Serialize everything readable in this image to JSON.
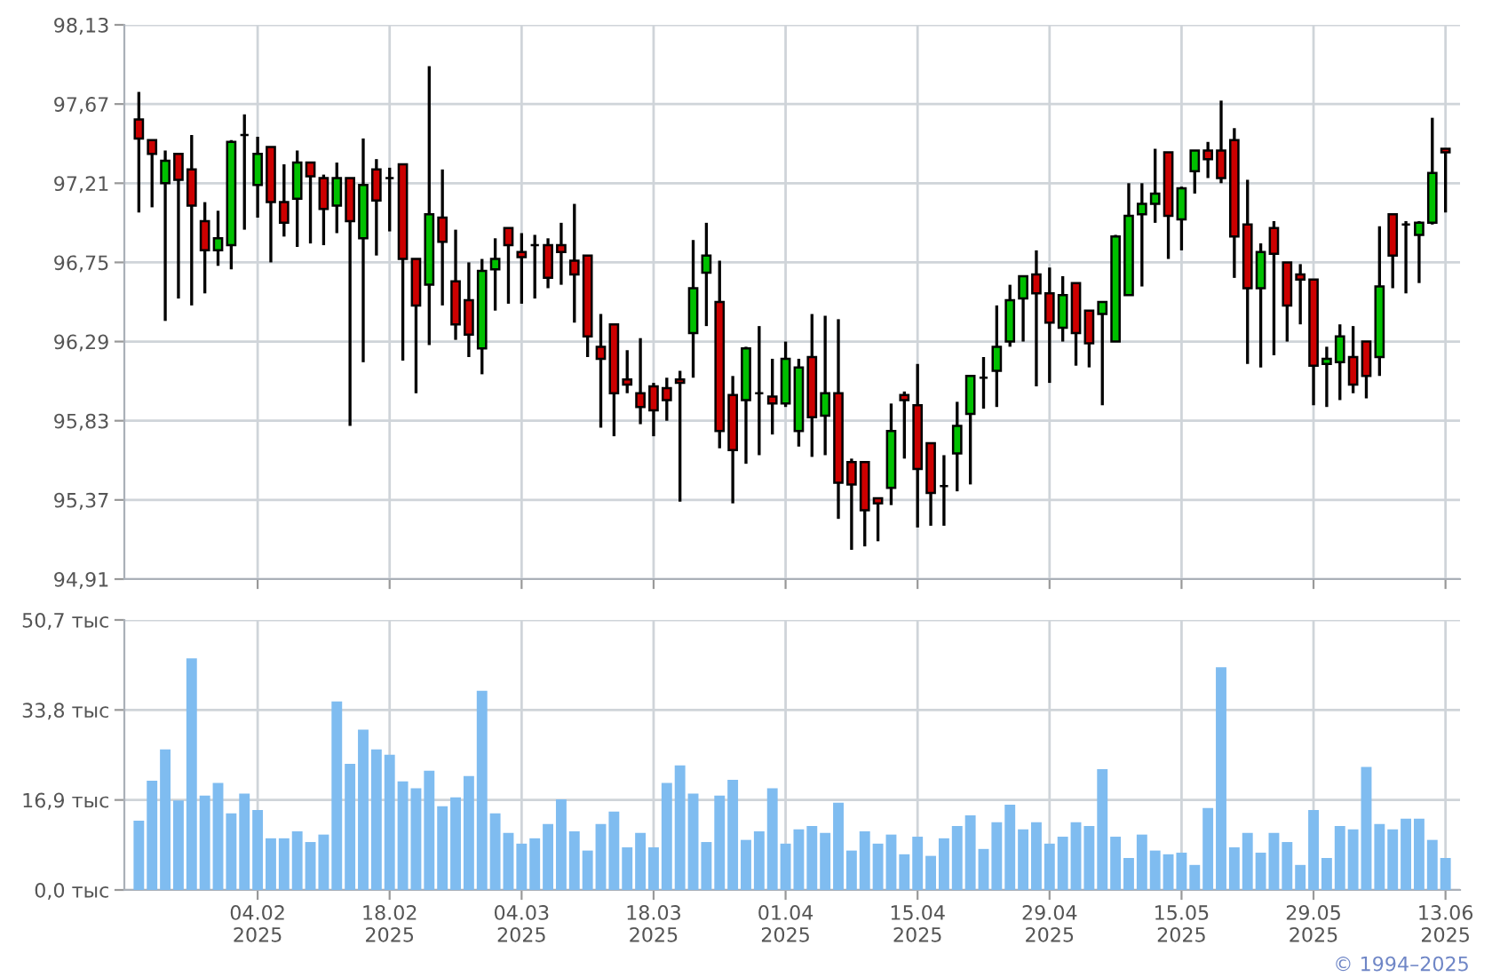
{
  "chart_data": [
    {
      "type": "candlestick",
      "categories": [
        null,
        null,
        null,
        null,
        null,
        null,
        null,
        null,
        null,
        null,
        null,
        null,
        null,
        null,
        null,
        null,
        null,
        null,
        null,
        null,
        null,
        null,
        null,
        null,
        null,
        null,
        null,
        null,
        null,
        null,
        null,
        null,
        null,
        null,
        null,
        null,
        null,
        null,
        null,
        null,
        null,
        null,
        null,
        null,
        null,
        null,
        null,
        null,
        null,
        null,
        null,
        null,
        null,
        null,
        null,
        null,
        null,
        null,
        null,
        null,
        null,
        null,
        null,
        null,
        null,
        null,
        null,
        null,
        null,
        null,
        null,
        null,
        null,
        null,
        null,
        null,
        null,
        null,
        null,
        null,
        null,
        null,
        null,
        null,
        null,
        null,
        null,
        null,
        null,
        null,
        null,
        null,
        null,
        null,
        null,
        null,
        null,
        null,
        null,
        null
      ],
      "ohlc": [
        [
          97.58,
          97.74,
          97.04,
          97.47
        ],
        [
          97.46,
          97.46,
          97.07,
          97.38
        ],
        [
          97.21,
          97.4,
          96.41,
          97.34
        ],
        [
          97.38,
          97.38,
          96.54,
          97.23
        ],
        [
          97.29,
          97.49,
          96.5,
          97.08
        ],
        [
          96.99,
          97.1,
          96.57,
          96.82
        ],
        [
          96.82,
          97.05,
          96.73,
          96.89
        ],
        [
          96.85,
          97.46,
          96.71,
          97.45
        ],
        [
          97.49,
          97.61,
          96.94,
          97.49
        ],
        [
          97.2,
          97.48,
          97.01,
          97.38
        ],
        [
          97.42,
          97.42,
          96.75,
          97.1
        ],
        [
          97.1,
          97.32,
          96.9,
          96.98
        ],
        [
          97.12,
          97.4,
          96.84,
          97.33
        ],
        [
          97.33,
          97.33,
          96.86,
          97.25
        ],
        [
          97.24,
          97.26,
          96.85,
          97.06
        ],
        [
          97.08,
          97.33,
          96.92,
          97.24
        ],
        [
          97.24,
          97.24,
          95.8,
          96.99
        ],
        [
          96.89,
          97.47,
          96.17,
          97.2
        ],
        [
          97.29,
          97.35,
          96.79,
          97.11
        ],
        [
          97.24,
          97.3,
          96.93,
          97.24
        ],
        [
          97.32,
          97.32,
          96.18,
          96.77
        ],
        [
          96.77,
          96.77,
          95.99,
          96.5
        ],
        [
          96.62,
          97.89,
          96.27,
          97.03
        ],
        [
          97.01,
          97.29,
          96.5,
          96.87
        ],
        [
          96.64,
          96.94,
          96.3,
          96.39
        ],
        [
          96.53,
          96.75,
          96.2,
          96.33
        ],
        [
          96.25,
          96.77,
          96.1,
          96.7
        ],
        [
          96.71,
          96.89,
          96.47,
          96.77
        ],
        [
          96.95,
          96.95,
          96.51,
          96.85
        ],
        [
          96.81,
          96.92,
          96.51,
          96.78
        ],
        [
          96.85,
          96.91,
          96.54,
          96.85
        ],
        [
          96.85,
          96.89,
          96.6,
          96.66
        ],
        [
          96.85,
          96.98,
          96.62,
          96.81
        ],
        [
          96.76,
          97.09,
          96.4,
          96.68
        ],
        [
          96.79,
          96.79,
          96.2,
          96.32
        ],
        [
          96.26,
          96.45,
          95.79,
          96.19
        ],
        [
          96.39,
          96.39,
          95.74,
          95.99
        ],
        [
          96.07,
          96.24,
          95.99,
          96.04
        ],
        [
          95.99,
          96.31,
          95.81,
          95.91
        ],
        [
          96.03,
          96.05,
          95.74,
          95.89
        ],
        [
          96.02,
          96.08,
          95.83,
          95.95
        ],
        [
          96.07,
          96.12,
          95.36,
          96.05
        ],
        [
          96.34,
          96.88,
          96.08,
          96.6
        ],
        [
          96.69,
          96.98,
          96.38,
          96.79
        ],
        [
          96.52,
          96.76,
          95.67,
          95.77
        ],
        [
          95.98,
          96.09,
          95.35,
          95.66
        ],
        [
          95.95,
          96.26,
          95.58,
          96.25
        ],
        [
          95.99,
          96.38,
          95.63,
          95.99
        ],
        [
          95.97,
          96.19,
          95.75,
          95.93
        ],
        [
          95.93,
          96.29,
          95.91,
          96.19
        ],
        [
          95.77,
          96.19,
          95.68,
          96.14
        ],
        [
          96.2,
          96.45,
          95.62,
          95.85
        ],
        [
          95.86,
          96.44,
          95.63,
          95.99
        ],
        [
          95.99,
          96.42,
          95.26,
          95.47
        ],
        [
          95.59,
          95.61,
          95.08,
          95.46
        ],
        [
          95.59,
          95.59,
          95.1,
          95.31
        ],
        [
          95.38,
          95.38,
          95.13,
          95.35
        ],
        [
          95.44,
          95.93,
          95.34,
          95.77
        ],
        [
          95.98,
          96.0,
          95.61,
          95.95
        ],
        [
          95.92,
          96.16,
          95.21,
          95.55
        ],
        [
          95.7,
          95.7,
          95.22,
          95.41
        ],
        [
          95.45,
          95.63,
          95.22,
          95.45
        ],
        [
          95.64,
          95.94,
          95.42,
          95.8
        ],
        [
          95.87,
          96.09,
          95.46,
          96.09
        ],
        [
          96.08,
          96.2,
          95.9,
          96.08
        ],
        [
          96.12,
          96.5,
          95.91,
          96.26
        ],
        [
          96.29,
          96.62,
          96.26,
          96.53
        ],
        [
          96.54,
          96.67,
          96.29,
          96.67
        ],
        [
          96.68,
          96.82,
          96.03,
          96.57
        ],
        [
          96.57,
          96.72,
          96.05,
          96.4
        ],
        [
          96.37,
          96.67,
          96.29,
          96.56
        ],
        [
          96.63,
          96.63,
          96.15,
          96.34
        ],
        [
          96.47,
          96.47,
          96.14,
          96.28
        ],
        [
          96.45,
          96.52,
          95.92,
          96.52
        ],
        [
          96.29,
          96.91,
          96.29,
          96.9
        ],
        [
          96.56,
          97.21,
          96.56,
          97.02
        ],
        [
          97.03,
          97.21,
          96.61,
          97.09
        ],
        [
          97.09,
          97.41,
          96.98,
          97.15
        ],
        [
          97.39,
          97.39,
          96.77,
          97.02
        ],
        [
          97.0,
          97.19,
          96.82,
          97.18
        ],
        [
          97.28,
          97.4,
          97.15,
          97.4
        ],
        [
          97.4,
          97.45,
          97.24,
          97.35
        ],
        [
          97.4,
          97.69,
          97.21,
          97.24
        ],
        [
          97.46,
          97.53,
          96.66,
          96.9
        ],
        [
          96.97,
          97.23,
          96.16,
          96.6
        ],
        [
          96.6,
          96.86,
          96.14,
          96.81
        ],
        [
          96.95,
          96.99,
          96.21,
          96.8
        ],
        [
          96.75,
          96.75,
          96.29,
          96.5
        ],
        [
          96.68,
          96.74,
          96.39,
          96.65
        ],
        [
          96.65,
          96.65,
          95.92,
          96.15
        ],
        [
          96.16,
          96.26,
          95.91,
          96.19
        ],
        [
          96.17,
          96.39,
          95.95,
          96.32
        ],
        [
          96.2,
          96.38,
          95.99,
          96.04
        ],
        [
          96.29,
          96.29,
          95.96,
          96.09
        ],
        [
          96.2,
          96.96,
          96.09,
          96.61
        ],
        [
          97.03,
          97.03,
          96.6,
          96.79
        ],
        [
          96.97,
          96.99,
          96.57,
          96.97
        ],
        [
          96.91,
          96.99,
          96.63,
          96.98
        ],
        [
          96.98,
          97.59,
          96.97,
          97.27
        ],
        [
          97.41,
          97.41,
          97.04,
          97.39
        ]
      ],
      "colors": [
        "#cc0000",
        "#cc0000",
        "#00c000",
        "#cc0000",
        "#cc0000",
        "#cc0000",
        "#00c000",
        "#00c000",
        "#000000",
        "#00c000",
        "#cc0000",
        "#cc0000",
        "#00c000",
        "#cc0000",
        "#cc0000",
        "#00c000",
        "#cc0000",
        "#00c000",
        "#cc0000",
        "#000000",
        "#cc0000",
        "#cc0000",
        "#00c000",
        "#cc0000",
        "#cc0000",
        "#cc0000",
        "#00c000",
        "#00c000",
        "#cc0000",
        "#cc0000",
        "#000000",
        "#cc0000",
        "#cc0000",
        "#cc0000",
        "#cc0000",
        "#cc0000",
        "#cc0000",
        "#cc0000",
        "#cc0000",
        "#cc0000",
        "#cc0000",
        "#cc0000",
        "#00c000",
        "#00c000",
        "#cc0000",
        "#cc0000",
        "#00c000",
        "#000000",
        "#cc0000",
        "#00c000",
        "#00c000",
        "#cc0000",
        "#00c000",
        "#cc0000",
        "#cc0000",
        "#cc0000",
        "#cc0000",
        "#00c000",
        "#cc0000",
        "#cc0000",
        "#cc0000",
        "#000000",
        "#00c000",
        "#00c000",
        "#000000",
        "#00c000",
        "#00c000",
        "#00c000",
        "#cc0000",
        "#cc0000",
        "#00c000",
        "#cc0000",
        "#cc0000",
        "#00c000",
        "#00c000",
        "#00c000",
        "#00c000",
        "#00c000",
        "#cc0000",
        "#00c000",
        "#00c000",
        "#cc0000",
        "#cc0000",
        "#cc0000",
        "#cc0000",
        "#00c000",
        "#cc0000",
        "#cc0000",
        "#cc0000",
        "#cc0000",
        "#00c000",
        "#00c000",
        "#cc0000",
        "#cc0000",
        "#00c000",
        "#cc0000",
        "#000000",
        "#00c000",
        "#00c000",
        "#cc0000"
      ],
      "ylim": [
        94.91,
        98.13
      ],
      "yticks": [
        {
          "value": 94.91,
          "label": "94,91"
        },
        {
          "value": 95.37,
          "label": "95,37"
        },
        {
          "value": 95.83,
          "label": "95,83"
        },
        {
          "value": 96.29,
          "label": "96,29"
        },
        {
          "value": 96.75,
          "label": "96,75"
        },
        {
          "value": 97.21,
          "label": "97,21"
        },
        {
          "value": 97.67,
          "label": "97,67"
        },
        {
          "value": 98.13,
          "label": "98,13"
        }
      ],
      "grid": true,
      "tick_labels": "y"
    },
    {
      "type": "bar",
      "categories": [
        null,
        null,
        null,
        null,
        null,
        null,
        null,
        null,
        null,
        "04.02\n2025",
        null,
        null,
        null,
        null,
        null,
        null,
        null,
        null,
        null,
        "18.02\n2025",
        null,
        null,
        null,
        null,
        null,
        null,
        null,
        null,
        null,
        "04.03\n2025",
        null,
        null,
        null,
        null,
        null,
        null,
        null,
        null,
        null,
        "18.03\n2025",
        null,
        null,
        null,
        null,
        null,
        null,
        null,
        null,
        null,
        "01.04\n2025",
        null,
        null,
        null,
        null,
        null,
        null,
        null,
        null,
        null,
        "15.04\n2025",
        null,
        null,
        null,
        null,
        null,
        null,
        null,
        null,
        null,
        "29.04\n2025",
        null,
        null,
        null,
        null,
        null,
        null,
        null,
        null,
        null,
        "15.05\n2025",
        null,
        null,
        null,
        null,
        null,
        null,
        null,
        null,
        null,
        "29.05\n2025",
        null,
        null,
        null,
        null,
        null,
        null,
        null,
        null,
        null,
        "13.06\n2025"
      ],
      "values": [
        13.0,
        20.5,
        26.4,
        16.8,
        43.5,
        17.7,
        20.1,
        14.4,
        18.1,
        15.0,
        9.7,
        9.7,
        11.0,
        9.0,
        10.4,
        35.4,
        23.7,
        30.1,
        26.4,
        25.4,
        20.4,
        19.1,
        22.4,
        15.7,
        17.4,
        21.4,
        37.4,
        14.4,
        10.7,
        8.7,
        9.7,
        12.4,
        17.0,
        11.0,
        7.4,
        12.4,
        14.7,
        8.0,
        10.7,
        8.0,
        20.1,
        23.4,
        18.1,
        9.0,
        17.7,
        20.7,
        9.4,
        11.0,
        19.1,
        8.7,
        11.4,
        12.0,
        10.7,
        16.4,
        7.4,
        11.0,
        8.7,
        10.4,
        6.7,
        10.0,
        6.4,
        9.7,
        12.0,
        14.0,
        7.7,
        12.7,
        16.0,
        11.4,
        12.7,
        8.7,
        10.0,
        12.7,
        12.0,
        22.7,
        10.0,
        6.0,
        10.4,
        7.4,
        6.7,
        7.0,
        4.7,
        15.4,
        41.8,
        8.0,
        10.7,
        7.0,
        10.7,
        9.0,
        4.7,
        15.0,
        6.0,
        12.0,
        11.4,
        23.1,
        12.4,
        11.4,
        13.4,
        13.4,
        9.4,
        6.0
      ],
      "color": "#7fbcf0",
      "ylim": [
        0,
        50.7
      ],
      "yticks": [
        {
          "value": 0,
          "label": "0,0 тыс"
        },
        {
          "value": 16.9,
          "label": "16,9 тыс"
        },
        {
          "value": 33.8,
          "label": "33,8 тыс"
        },
        {
          "value": 50.7,
          "label": "50,7 тыс"
        }
      ],
      "grid": true,
      "annotations": [
        "© 1994–2025"
      ]
    }
  ]
}
